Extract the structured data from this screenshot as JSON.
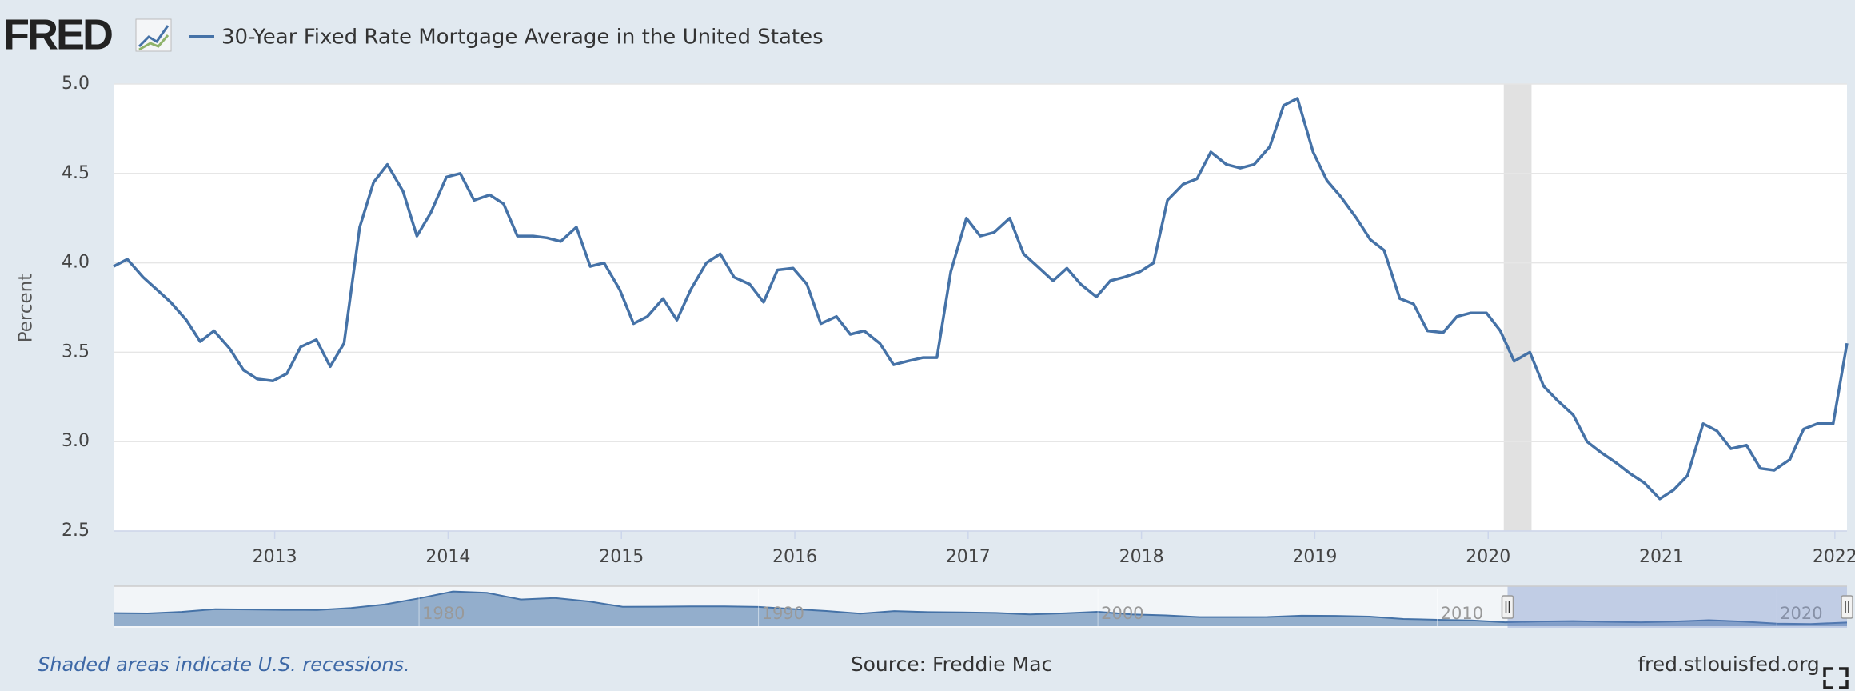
{
  "logo": "FRED",
  "note": "Shaded areas indicate U.S. recessions.",
  "source": "Source: Freddie Mac",
  "site": "fred.stlouisfed.org",
  "chart_data": [
    {
      "type": "line",
      "ylabel": "Percent",
      "x": [
        2012.07,
        2012.15,
        2012.24,
        2012.32,
        2012.4,
        2012.49,
        2012.57,
        2012.65,
        2012.74,
        2012.82,
        2012.9,
        2012.99,
        2013.07,
        2013.15,
        2013.24,
        2013.32,
        2013.4,
        2013.49,
        2013.57,
        2013.65,
        2013.74,
        2013.82,
        2013.9,
        2013.99,
        2014.07,
        2014.15,
        2014.24,
        2014.32,
        2014.4,
        2014.49,
        2014.57,
        2014.65,
        2014.74,
        2014.82,
        2014.9,
        2014.99,
        2015.07,
        2015.15,
        2015.24,
        2015.32,
        2015.4,
        2015.49,
        2015.57,
        2015.65,
        2015.74,
        2015.82,
        2015.9,
        2015.99,
        2016.07,
        2016.15,
        2016.24,
        2016.32,
        2016.4,
        2016.49,
        2016.57,
        2016.65,
        2016.74,
        2016.82,
        2016.9,
        2016.99,
        2017.07,
        2017.15,
        2017.24,
        2017.32,
        2017.4,
        2017.49,
        2017.57,
        2017.65,
        2017.74,
        2017.82,
        2017.9,
        2017.99,
        2018.07,
        2018.15,
        2018.24,
        2018.32,
        2018.4,
        2018.49,
        2018.57,
        2018.65,
        2018.74,
        2018.82,
        2018.9,
        2018.99,
        2019.07,
        2019.15,
        2019.24,
        2019.32,
        2019.4,
        2019.49,
        2019.57,
        2019.65,
        2019.74,
        2019.82,
        2019.9,
        2019.99,
        2020.07,
        2020.15,
        2020.24,
        2020.32,
        2020.4,
        2020.49,
        2020.57,
        2020.65,
        2020.74,
        2020.82,
        2020.9,
        2020.99,
        2021.07,
        2021.15,
        2021.24,
        2021.32,
        2021.4,
        2021.49,
        2021.57,
        2021.65,
        2021.74,
        2021.82,
        2021.9,
        2021.99,
        2022.07
      ],
      "series": [
        {
          "name": "30-Year Fixed Rate Mortgage Average in the United States",
          "color": "#4572a7",
          "values": [
            3.98,
            4.02,
            3.92,
            3.85,
            3.78,
            3.68,
            3.56,
            3.62,
            3.52,
            3.4,
            3.35,
            3.34,
            3.38,
            3.53,
            3.57,
            3.42,
            3.55,
            4.2,
            4.45,
            4.55,
            4.4,
            4.15,
            4.28,
            4.48,
            4.5,
            4.35,
            4.38,
            4.33,
            4.15,
            4.15,
            4.14,
            4.12,
            4.2,
            3.98,
            4.0,
            3.85,
            3.66,
            3.7,
            3.8,
            3.68,
            3.85,
            4.0,
            4.05,
            3.92,
            3.88,
            3.78,
            3.96,
            3.97,
            3.88,
            3.66,
            3.7,
            3.6,
            3.62,
            3.55,
            3.43,
            3.45,
            3.47,
            3.47,
            3.95,
            4.25,
            4.15,
            4.17,
            4.25,
            4.05,
            3.98,
            3.9,
            3.97,
            3.88,
            3.81,
            3.9,
            3.92,
            3.95,
            4.0,
            4.35,
            4.44,
            4.47,
            4.62,
            4.55,
            4.53,
            4.55,
            4.65,
            4.88,
            4.92,
            4.62,
            4.46,
            4.37,
            4.25,
            4.13,
            4.07,
            3.8,
            3.77,
            3.62,
            3.61,
            3.7,
            3.72,
            3.72,
            3.62,
            3.45,
            3.5,
            3.31,
            3.23,
            3.15,
            3.0,
            2.94,
            2.88,
            2.82,
            2.77,
            2.68,
            2.73,
            2.81,
            3.1,
            3.06,
            2.96,
            2.98,
            2.85,
            2.84,
            2.9,
            3.07,
            3.1,
            3.1,
            3.55
          ]
        }
      ],
      "xlim": [
        2012.07,
        2022.07
      ],
      "xticks": [
        2013,
        2014,
        2015,
        2016,
        2017,
        2018,
        2019,
        2020,
        2021,
        2022
      ],
      "ylim": [
        2.5,
        5.0
      ],
      "yticks": [
        2.5,
        {
          "value": 3,
          "label": "3.0"
        },
        3.5,
        {
          "value": 4,
          "label": "4.0"
        },
        4.5,
        {
          "value": 5,
          "label": "5.0"
        }
      ],
      "grid": true,
      "recessions": [
        {
          "start": 2020.09,
          "end": 2020.25
        }
      ]
    },
    {
      "type": "area",
      "x": [
        1971,
        1972,
        1973,
        1974,
        1975,
        1976,
        1977,
        1978,
        1979,
        1980,
        1981,
        1982,
        1983,
        1984,
        1985,
        1986,
        1987,
        1988,
        1989,
        1990,
        1991,
        1992,
        1993,
        1994,
        1995,
        1996,
        1997,
        1998,
        1999,
        2000,
        2001,
        2002,
        2003,
        2004,
        2005,
        2006,
        2007,
        2008,
        2009,
        2010,
        2011,
        2012,
        2013,
        2014,
        2015,
        2016,
        2017,
        2018,
        2019,
        2020,
        2021,
        2022.07
      ],
      "values": [
        7.54,
        7.38,
        8.04,
        9.19,
        9.05,
        8.87,
        8.85,
        9.64,
        11.2,
        13.74,
        16.63,
        16.04,
        13.24,
        13.88,
        12.43,
        10.19,
        10.21,
        10.34,
        10.32,
        10.13,
        9.25,
        8.39,
        7.31,
        8.38,
        7.93,
        7.81,
        7.6,
        6.94,
        7.44,
        8.05,
        6.97,
        6.54,
        5.83,
        5.84,
        5.87,
        6.41,
        6.34,
        6.03,
        5.04,
        4.69,
        4.45,
        3.66,
        3.98,
        4.17,
        3.85,
        3.65,
        3.99,
        4.54,
        3.94,
        3.11,
        2.96,
        3.55
      ],
      "color": "#4572a7",
      "xlim": [
        1971,
        2022.07
      ],
      "xticks": [
        1980,
        1990,
        2000,
        2010,
        2020
      ],
      "ylim": [
        2,
        17.5
      ]
    }
  ]
}
